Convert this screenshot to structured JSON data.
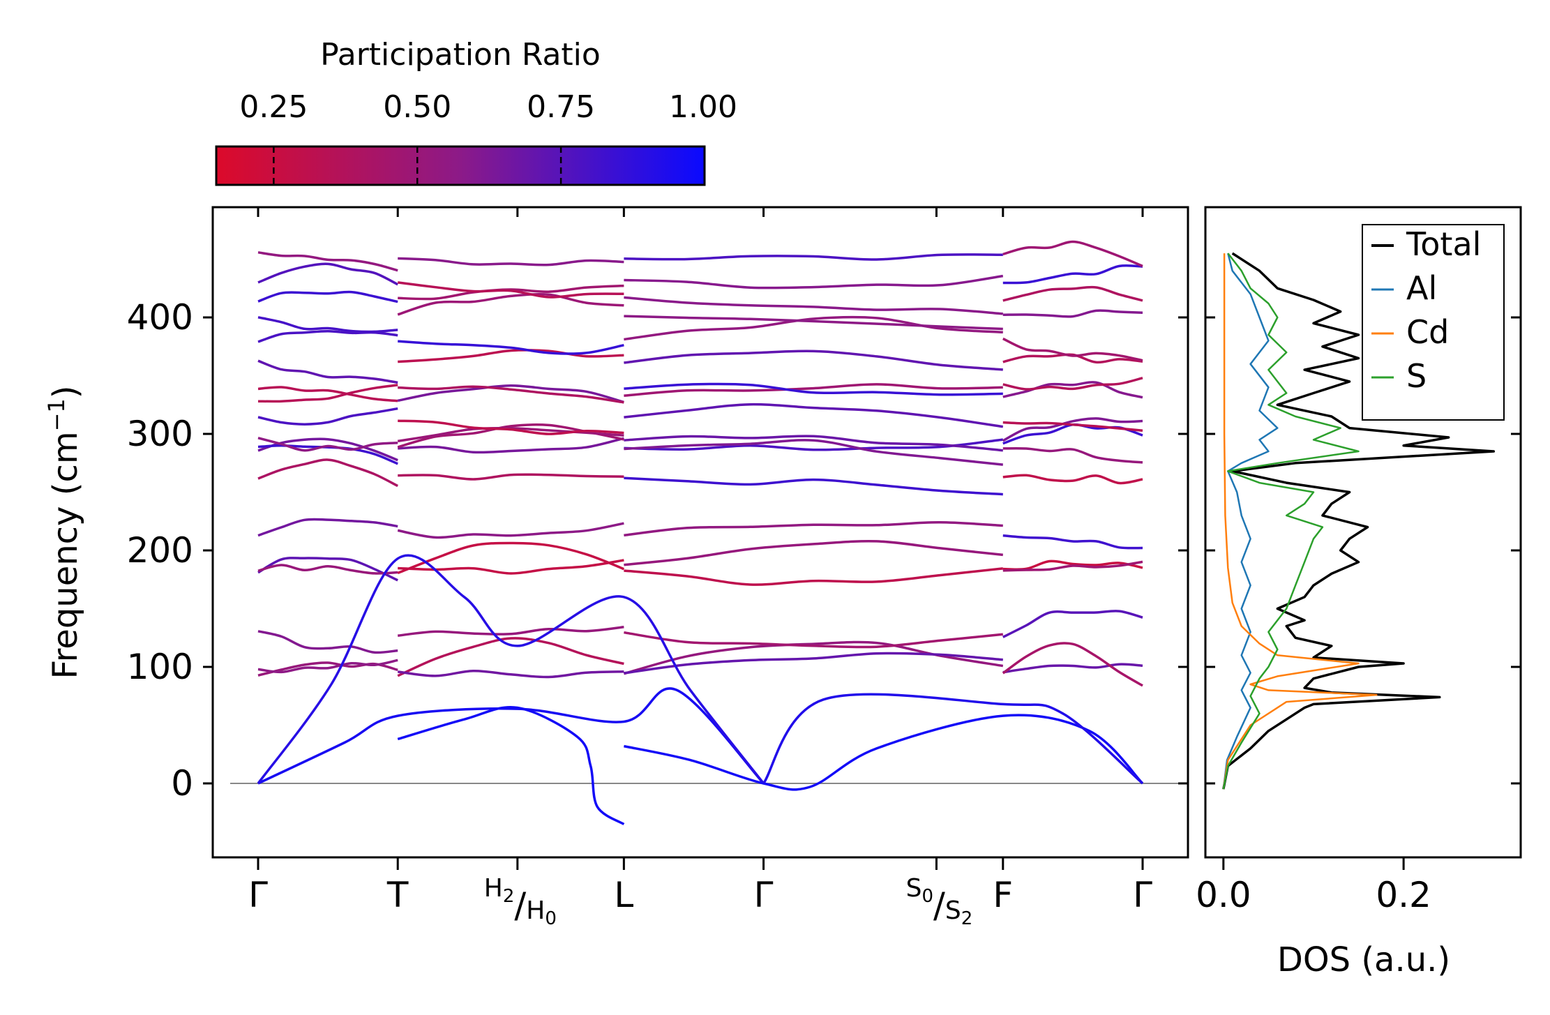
{
  "colorbar": {
    "title": "Participation Ratio",
    "range": [
      0.15,
      1.0
    ],
    "ticks": [
      0.25,
      0.5,
      0.75,
      1.0
    ],
    "tick_labels": [
      "0.25",
      "0.50",
      "0.75",
      "1.00"
    ],
    "colors": [
      "#dc0a2a",
      "#8c1a88",
      "#0a0aff"
    ]
  },
  "chart_data": [
    {
      "type": "line",
      "name": "phonon-band-structure",
      "ylabel": "Frequency (cm",
      "ylabel_sup": "−1",
      "ylabel_close": ")",
      "ylim": [
        -60,
        495
      ],
      "yticks": [
        0,
        100,
        200,
        300,
        400
      ],
      "ytick_labels": [
        "0",
        "100",
        "200",
        "300",
        "400"
      ],
      "xlim": [
        0,
        7.0
      ],
      "zero_line": true,
      "kpoints": [
        {
          "x": 0.35,
          "label": "Γ"
        },
        {
          "x": 1.4,
          "label": "T"
        },
        {
          "x": 2.3,
          "label": "H",
          "sub": "2",
          "post": "/",
          "label2": "H",
          "sub2": "0",
          "super": true
        },
        {
          "x": 3.1,
          "label": "L"
        },
        {
          "x": 4.15,
          "label": "Γ"
        },
        {
          "x": 5.45,
          "label": "S",
          "sub": "0",
          "post": "/",
          "label2": "S",
          "sub2": "2",
          "super": true
        },
        {
          "x": 5.95,
          "label": "F"
        },
        {
          "x": 7.0,
          "label": "Γ"
        }
      ],
      "segments": [
        [
          0.35,
          1.4
        ],
        [
          1.4,
          3.1
        ],
        [
          3.1,
          5.95
        ],
        [
          5.95,
          7.0
        ]
      ],
      "acoustic_branches": [
        {
          "points": [
            [
              0.35,
              0
            ],
            [
              1.0,
              35
            ],
            [
              1.4,
              58
            ],
            [
              2.3,
              64
            ],
            [
              3.1,
              53
            ],
            [
              3.5,
              80
            ],
            [
              4.15,
              0
            ]
          ],
          "pr": 0.95
        },
        {
          "points": [
            [
              0.35,
              0
            ],
            [
              0.9,
              85
            ],
            [
              1.4,
              193
            ],
            [
              1.9,
              160
            ],
            [
              2.3,
              118
            ],
            [
              3.1,
              160
            ],
            [
              3.6,
              80
            ],
            [
              4.15,
              0
            ]
          ],
          "pr": 0.9
        },
        {
          "points": [
            [
              1.4,
              38
            ],
            [
              1.9,
              55
            ],
            [
              2.3,
              65
            ],
            [
              2.75,
              40
            ],
            [
              2.85,
              15
            ],
            [
              2.9,
              -20
            ],
            [
              3.1,
              -35
            ]
          ],
          "pr": 0.97
        },
        {
          "points": [
            [
              3.1,
              32
            ],
            [
              3.6,
              20
            ],
            [
              4.15,
              0
            ],
            [
              4.5,
              -3
            ],
            [
              5.0,
              30
            ],
            [
              5.95,
              58
            ],
            [
              6.6,
              45
            ],
            [
              7.0,
              0
            ]
          ],
          "pr": 0.97
        },
        {
          "points": [
            [
              4.15,
              0
            ],
            [
              4.6,
              72
            ],
            [
              5.95,
              68
            ],
            [
              6.4,
              60
            ],
            [
              7.0,
              0
            ]
          ],
          "pr": 0.92
        }
      ],
      "optical_base_levels": [
        95,
        97,
        128,
        183,
        185,
        215,
        262,
        287,
        290,
        296,
        312,
        330,
        340,
        362,
        380,
        402,
        416,
        430,
        453
      ]
    },
    {
      "type": "line",
      "name": "phonon-dos",
      "xlabel": "DOS (a.u.)",
      "xlim": [
        -0.02,
        0.33
      ],
      "xticks": [
        0.0,
        0.2
      ],
      "xtick_labels": [
        "0.0",
        "0.2"
      ],
      "ylim": [
        -60,
        495
      ],
      "legend_position": "top-right",
      "series": [
        {
          "name": "Total",
          "color": "#000000",
          "points": [
            [
              0,
              -5
            ],
            [
              0.005,
              15
            ],
            [
              0.03,
              30
            ],
            [
              0.05,
              45
            ],
            [
              0.07,
              55
            ],
            [
              0.09,
              65
            ],
            [
              0.1,
              68
            ],
            [
              0.24,
              74
            ],
            [
              0.12,
              78
            ],
            [
              0.09,
              82
            ],
            [
              0.1,
              90
            ],
            [
              0.15,
              100
            ],
            [
              0.2,
              103
            ],
            [
              0.1,
              108
            ],
            [
              0.12,
              118
            ],
            [
              0.08,
              125
            ],
            [
              0.07,
              135
            ],
            [
              0.09,
              140
            ],
            [
              0.06,
              150
            ],
            [
              0.09,
              160
            ],
            [
              0.1,
              170
            ],
            [
              0.12,
              180
            ],
            [
              0.15,
              190
            ],
            [
              0.13,
              200
            ],
            [
              0.14,
              210
            ],
            [
              0.16,
              220
            ],
            [
              0.11,
              230
            ],
            [
              0.12,
              240
            ],
            [
              0.14,
              250
            ],
            [
              0.07,
              258
            ],
            [
              0.01,
              268
            ],
            [
              0.08,
              275
            ],
            [
              0.3,
              285
            ],
            [
              0.2,
              290
            ],
            [
              0.25,
              297
            ],
            [
              0.14,
              305
            ],
            [
              0.12,
              315
            ],
            [
              0.06,
              325
            ],
            [
              0.1,
              335
            ],
            [
              0.14,
              345
            ],
            [
              0.09,
              355
            ],
            [
              0.15,
              365
            ],
            [
              0.11,
              375
            ],
            [
              0.15,
              385
            ],
            [
              0.1,
              395
            ],
            [
              0.13,
              405
            ],
            [
              0.1,
              415
            ],
            [
              0.06,
              425
            ],
            [
              0.04,
              440
            ],
            [
              0.01,
              455
            ]
          ]
        },
        {
          "name": "Al",
          "color": "#1f77b4",
          "points": [
            [
              0,
              -5
            ],
            [
              0.004,
              20
            ],
            [
              0.015,
              40
            ],
            [
              0.03,
              65
            ],
            [
              0.02,
              80
            ],
            [
              0.03,
              95
            ],
            [
              0.02,
              110
            ],
            [
              0.03,
              130
            ],
            [
              0.02,
              150
            ],
            [
              0.03,
              170
            ],
            [
              0.02,
              190
            ],
            [
              0.03,
              210
            ],
            [
              0.02,
              230
            ],
            [
              0.015,
              250
            ],
            [
              0.005,
              268
            ],
            [
              0.02,
              275
            ],
            [
              0.05,
              285
            ],
            [
              0.04,
              295
            ],
            [
              0.06,
              305
            ],
            [
              0.04,
              320
            ],
            [
              0.05,
              340
            ],
            [
              0.03,
              360
            ],
            [
              0.05,
              380
            ],
            [
              0.04,
              400
            ],
            [
              0.03,
              420
            ],
            [
              0.01,
              440
            ],
            [
              0.005,
              455
            ]
          ]
        },
        {
          "name": "Cd",
          "color": "#ff7f0e",
          "points": [
            [
              0,
              -5
            ],
            [
              0.005,
              20
            ],
            [
              0.03,
              50
            ],
            [
              0.07,
              70
            ],
            [
              0.17,
              76
            ],
            [
              0.05,
              80
            ],
            [
              0.03,
              85
            ],
            [
              0.06,
              92
            ],
            [
              0.15,
              103
            ],
            [
              0.06,
              110
            ],
            [
              0.04,
              120
            ],
            [
              0.02,
              135
            ],
            [
              0.01,
              155
            ],
            [
              0.005,
              185
            ],
            [
              0.002,
              230
            ],
            [
              0.001,
              300
            ],
            [
              0.001,
              400
            ],
            [
              0.001,
              455
            ]
          ]
        },
        {
          "name": "S",
          "color": "#2ca02c",
          "points": [
            [
              0,
              -5
            ],
            [
              0.005,
              15
            ],
            [
              0.02,
              35
            ],
            [
              0.04,
              60
            ],
            [
              0.03,
              75
            ],
            [
              0.04,
              90
            ],
            [
              0.05,
              100
            ],
            [
              0.06,
              115
            ],
            [
              0.05,
              130
            ],
            [
              0.07,
              150
            ],
            [
              0.08,
              170
            ],
            [
              0.09,
              190
            ],
            [
              0.1,
              210
            ],
            [
              0.11,
              220
            ],
            [
              0.07,
              230
            ],
            [
              0.09,
              240
            ],
            [
              0.1,
              250
            ],
            [
              0.04,
              258
            ],
            [
              0.005,
              268
            ],
            [
              0.06,
              275
            ],
            [
              0.15,
              285
            ],
            [
              0.1,
              295
            ],
            [
              0.13,
              305
            ],
            [
              0.08,
              315
            ],
            [
              0.05,
              325
            ],
            [
              0.07,
              335
            ],
            [
              0.06,
              345
            ],
            [
              0.05,
              355
            ],
            [
              0.07,
              370
            ],
            [
              0.05,
              385
            ],
            [
              0.06,
              400
            ],
            [
              0.05,
              412
            ],
            [
              0.03,
              425
            ],
            [
              0.02,
              440
            ],
            [
              0.005,
              455
            ]
          ]
        }
      ]
    }
  ]
}
